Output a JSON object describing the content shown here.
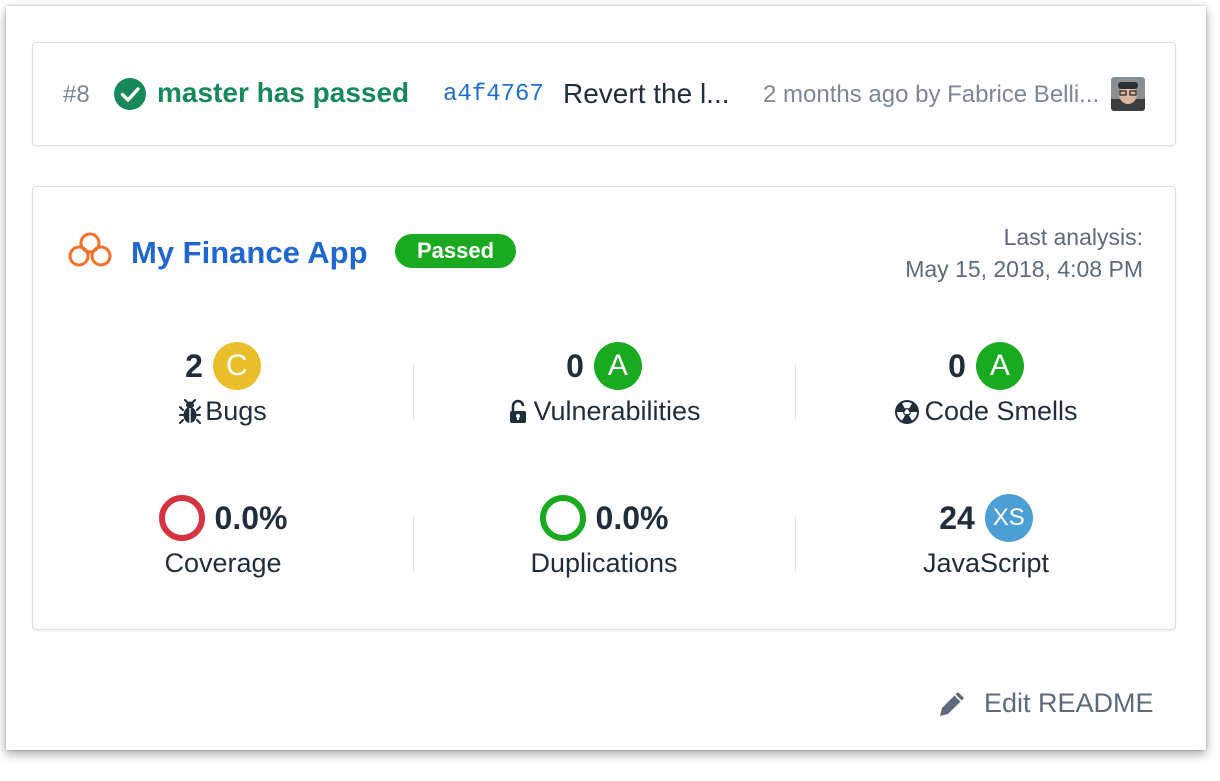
{
  "build": {
    "number": "#8",
    "status": "master has passed",
    "commit_sha": "a4f4767",
    "commit_message": "Revert the l...",
    "meta": "2 months ago by Fabrice Belli...",
    "status_color": "#16885a"
  },
  "project": {
    "name": "My Finance App",
    "quality_gate": "Passed",
    "last_analysis_label": "Last analysis:",
    "last_analysis_date": "May 15, 2018, 4:08 PM"
  },
  "metrics": {
    "bugs": {
      "value": "2",
      "rating": "C",
      "label": "Bugs",
      "rating_color": "#eabe2a",
      "icon": "bug-icon"
    },
    "vulnerabilities": {
      "value": "0",
      "rating": "A",
      "label": "Vulnerabilities",
      "rating_color": "#1aaa1f",
      "icon": "lock-open-icon"
    },
    "code_smells": {
      "value": "0",
      "rating": "A",
      "label": "Code Smells",
      "rating_color": "#1aaa1f",
      "icon": "radiation-icon"
    },
    "coverage": {
      "value": "0.0%",
      "label": "Coverage",
      "ring_color": "#d4333f"
    },
    "duplications": {
      "value": "0.0%",
      "label": "Duplications",
      "ring_color": "#1aaa1f"
    },
    "language": {
      "value": "24",
      "rating": "XS",
      "label": "JavaScript",
      "rating_color": "#4b9fd5"
    }
  },
  "footer": {
    "edit_readme_label": "Edit README"
  }
}
